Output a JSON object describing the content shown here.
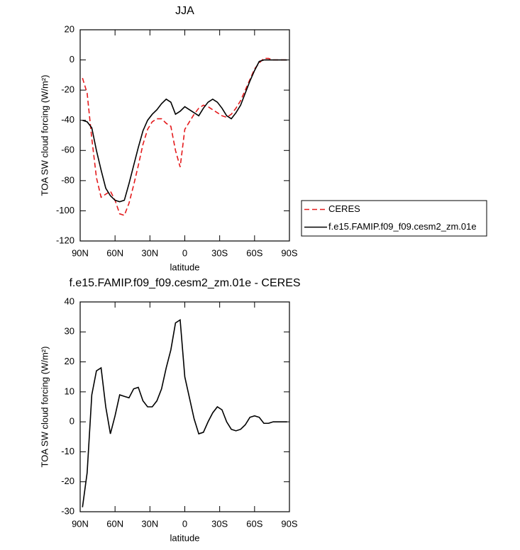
{
  "chart_data": [
    {
      "type": "line",
      "title": "JJA",
      "xlabel": "latitude",
      "ylabel": "TOA SW cloud forcing (W/m²)",
      "x": [
        88,
        84,
        80,
        76,
        72,
        68,
        64,
        60,
        56,
        52,
        48,
        44,
        40,
        36,
        32,
        28,
        24,
        20,
        16,
        12,
        8,
        4,
        0,
        -4,
        -8,
        -12,
        -16,
        -20,
        -24,
        -28,
        -32,
        -36,
        -40,
        -44,
        -48,
        -52,
        -56,
        -60,
        -64,
        -68,
        -72,
        -76,
        -80,
        -84,
        -88
      ],
      "series": [
        {
          "name": "CERES",
          "color": "#e41a1c",
          "dash": true,
          "values": [
            -12,
            -22,
            -52,
            -78,
            -91,
            -89,
            -87,
            -93,
            -102,
            -103,
            -95,
            -83,
            -70,
            -56,
            -46,
            -41,
            -39,
            -39,
            -42,
            -44,
            -60,
            -71,
            -46,
            -41,
            -36,
            -32,
            -30,
            -31,
            -33,
            -35,
            -37,
            -38,
            -36,
            -32,
            -27,
            -20,
            -13,
            -6,
            -2,
            1,
            1,
            0,
            0,
            0,
            0
          ]
        },
        {
          "name": "f.e15.FAMIP.f09_f09.cesm2_zm.01e",
          "color": "#000000",
          "dash": false,
          "values": [
            -40,
            -41,
            -45,
            -60,
            -73,
            -85,
            -90,
            -93,
            -94,
            -93,
            -82,
            -70,
            -58,
            -47,
            -40,
            -36,
            -33,
            -29,
            -26,
            -28,
            -36,
            -34,
            -31,
            -33,
            -35,
            -37,
            -32,
            -28,
            -26,
            -28,
            -32,
            -37,
            -39,
            -35,
            -30,
            -22,
            -14,
            -7,
            -1,
            0,
            0,
            0,
            0,
            0,
            0
          ]
        }
      ],
      "xlim": [
        90,
        -90
      ],
      "xticks": [
        {
          "value": 90,
          "label": "90N"
        },
        {
          "value": 60,
          "label": "60N"
        },
        {
          "value": 30,
          "label": "30N"
        },
        0,
        {
          "value": -30,
          "label": "30S"
        },
        {
          "value": -60,
          "label": "60S"
        },
        {
          "value": -90,
          "label": "90S"
        }
      ],
      "ylim": [
        -120,
        20
      ],
      "yticks": [
        -120,
        -100,
        -80,
        -60,
        -40,
        -20,
        0,
        20
      ],
      "legend": "outside-right",
      "grid": false
    },
    {
      "type": "line",
      "title": "f.e15.FAMIP.f09_f09.cesm2_zm.01e - CERES",
      "xlabel": "latitude",
      "ylabel": "TOA SW cloud forcing (W/m²)",
      "x": [
        88,
        84,
        80,
        76,
        72,
        68,
        64,
        60,
        56,
        52,
        48,
        44,
        40,
        36,
        32,
        28,
        24,
        20,
        16,
        12,
        8,
        4,
        0,
        -4,
        -8,
        -12,
        -16,
        -20,
        -24,
        -28,
        -32,
        -36,
        -40,
        -44,
        -48,
        -52,
        -56,
        -60,
        -64,
        -68,
        -72,
        -76,
        -80,
        -84,
        -88
      ],
      "values": [
        -28.5,
        -17,
        9,
        17,
        18,
        5,
        -4,
        2,
        9,
        8.5,
        8,
        11,
        11.5,
        7,
        5,
        5,
        7,
        11,
        18,
        24,
        33,
        34,
        15,
        8,
        1,
        -4,
        -3.5,
        0,
        3,
        5,
        4,
        0,
        -2.5,
        -3,
        -2.5,
        -1,
        1.5,
        2,
        1.5,
        -0.5,
        -0.5,
        0,
        0,
        0,
        0
      ],
      "color": "#000000",
      "xlim": [
        90,
        -90
      ],
      "xticks": [
        {
          "value": 90,
          "label": "90N"
        },
        {
          "value": 60,
          "label": "60N"
        },
        {
          "value": 30,
          "label": "30N"
        },
        0,
        {
          "value": -30,
          "label": "30S"
        },
        {
          "value": -60,
          "label": "60S"
        },
        {
          "value": -90,
          "label": "90S"
        }
      ],
      "ylim": [
        -30,
        40
      ],
      "yticks": [
        -30,
        -20,
        -10,
        0,
        10,
        20,
        30,
        40
      ],
      "grid": false
    }
  ]
}
